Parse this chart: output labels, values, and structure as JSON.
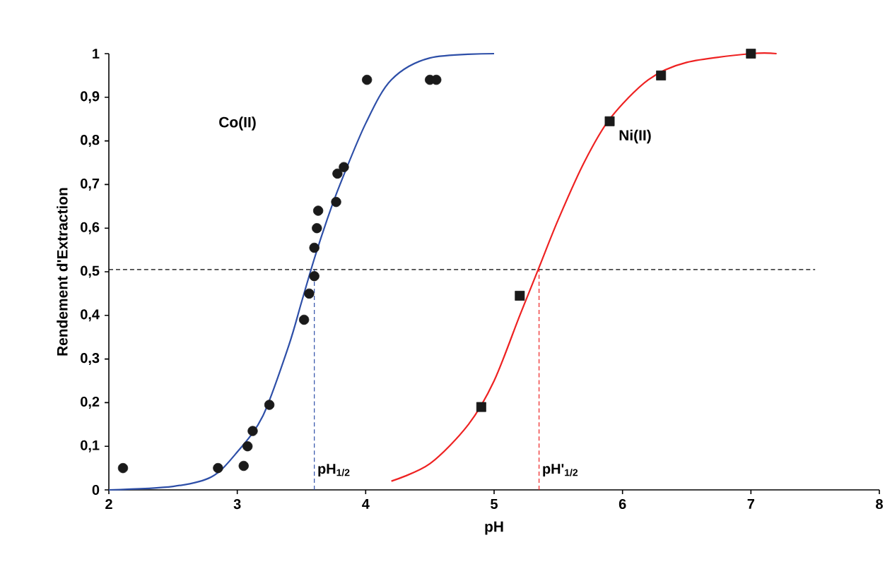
{
  "chart_data": {
    "type": "scatter",
    "xlabel": "pH",
    "ylabel": "Rendement d'Extraction",
    "xlim": [
      2,
      8
    ],
    "ylim": [
      0,
      1
    ],
    "xticks": [
      2,
      3,
      4,
      5,
      6,
      7,
      8
    ],
    "yticks": [
      0,
      {
        "value": 0.1,
        "label": "0,1"
      },
      {
        "value": 0.2,
        "label": "0,2"
      },
      {
        "value": 0.3,
        "label": "0,3"
      },
      {
        "value": 0.4,
        "label": "0,4"
      },
      {
        "value": 0.5,
        "label": "0,5"
      },
      {
        "value": 0.6,
        "label": "0,6"
      },
      {
        "value": 0.7,
        "label": "0,7"
      },
      {
        "value": 0.8,
        "label": "0,8"
      },
      {
        "value": 0.9,
        "label": "0,9"
      },
      1
    ],
    "series": [
      {
        "type": "line",
        "color": "#2e4fa8",
        "marker": "none",
        "line_style": "solid",
        "x": [
          2,
          2.5,
          2.8,
          3.0,
          3.2,
          3.4,
          3.5,
          3.6,
          3.7,
          3.8,
          4.0,
          4.2,
          4.5,
          5.0
        ],
        "values": [
          0,
          0.008,
          0.03,
          0.087,
          0.17,
          0.33,
          0.43,
          0.53,
          0.62,
          0.7,
          0.84,
          0.94,
          0.99,
          1.0
        ]
      },
      {
        "type": "line",
        "color": "#ee2222",
        "marker": "none",
        "line_style": "solid",
        "x": [
          4.2,
          4.5,
          4.8,
          5.0,
          5.2,
          5.35,
          5.5,
          5.7,
          5.9,
          6.2,
          6.5,
          7.0,
          7.2
        ],
        "values": [
          0.02,
          0.06,
          0.15,
          0.25,
          0.4,
          0.51,
          0.62,
          0.75,
          0.85,
          0.94,
          0.98,
          1.0,
          1.0
        ]
      },
      {
        "color": "#1a1a1a",
        "marker": "circle",
        "x": [
          2.11,
          2.85,
          3.05,
          3.08,
          3.12,
          3.25,
          3.52,
          3.56,
          3.6,
          3.6,
          3.62,
          3.63,
          3.77,
          3.78,
          3.83,
          4.01,
          4.5,
          4.55
        ],
        "values": [
          0.05,
          0.05,
          0.055,
          0.1,
          0.135,
          0.195,
          0.39,
          0.45,
          0.49,
          0.555,
          0.6,
          0.64,
          0.66,
          0.725,
          0.74,
          0.94,
          0.94,
          0.94
        ]
      },
      {
        "color": "#1a1a1a",
        "marker": "square",
        "x": [
          4.9,
          5.2,
          5.9,
          6.3,
          7.0
        ],
        "values": [
          0.19,
          0.445,
          0.845,
          0.95,
          1.0
        ]
      }
    ],
    "ref_lines": [
      {
        "axis": "y",
        "value": 0.505,
        "color": "#000000",
        "line_style": "dashed"
      },
      {
        "axis": "x",
        "value": 3.6,
        "label": "pH$_{1/2}$",
        "color": "#2e4fa8",
        "line_style": "dashed"
      },
      {
        "axis": "x",
        "value": 5.35,
        "label": "pH'$_{1/2}$",
        "color": "#ee2222",
        "line_style": "dashed"
      }
    ],
    "annotations": [
      "Co(II)",
      "Ni(II)"
    ]
  }
}
